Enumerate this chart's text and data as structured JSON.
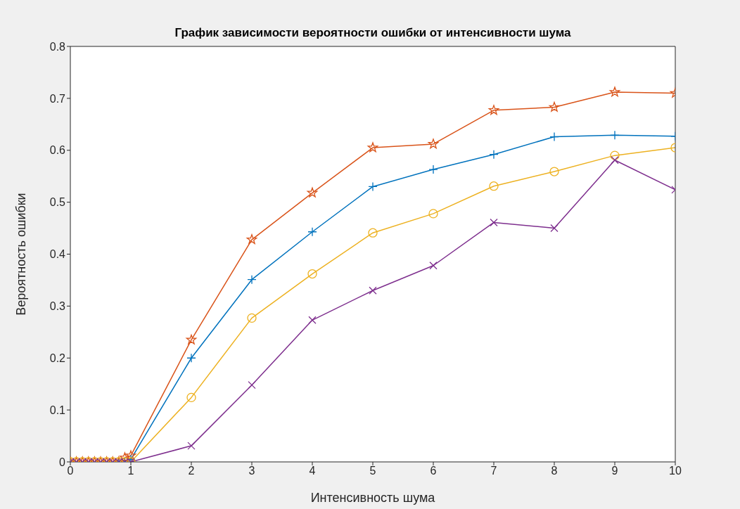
{
  "chart_data": {
    "type": "line",
    "title": "График зависимости вероятности ошибки от интенсивности шума",
    "xlabel": "Интенсивность шума",
    "ylabel": "Вероятность ошибки",
    "x": [
      0,
      0.1,
      0.2,
      0.3,
      0.4,
      0.5,
      0.6,
      0.7,
      0.8,
      0.9,
      1,
      2,
      3,
      4,
      5,
      6,
      7,
      8,
      9,
      10
    ],
    "series": [
      {
        "color": "#0072bd",
        "marker": "cross",
        "values": [
          null,
          null,
          null,
          null,
          null,
          null,
          null,
          null,
          0,
          0,
          0.005,
          0.2,
          0.351,
          0.443,
          0.53,
          0.563,
          0.592,
          0.626,
          0.629,
          0.627
        ]
      },
      {
        "color": "#d95319",
        "marker": "star",
        "values": [
          0,
          0,
          0,
          0,
          0,
          0,
          0,
          0,
          0,
          0.008,
          0.012,
          0.235,
          0.428,
          0.518,
          0.605,
          0.612,
          0.677,
          0.683,
          0.712,
          0.71
        ]
      },
      {
        "color": "#edb120",
        "marker": "circle",
        "values": [
          0,
          0,
          0,
          0,
          0,
          0,
          0,
          0,
          0,
          0,
          0,
          0.124,
          0.277,
          0.362,
          0.441,
          0.478,
          0.531,
          0.559,
          0.59,
          0.605
        ]
      },
      {
        "color": "#7e2f8e",
        "marker": "x",
        "values": [
          0,
          0,
          0,
          0,
          0,
          0,
          0,
          0,
          0,
          0,
          0,
          0.031,
          0.148,
          0.273,
          0.33,
          0.378,
          0.461,
          0.45,
          0.581,
          0.524
        ]
      }
    ],
    "xlim": [
      0,
      10
    ],
    "xticks": [
      0,
      1,
      2,
      3,
      4,
      5,
      6,
      7,
      8,
      9,
      10
    ],
    "ylim": [
      0,
      0.8
    ],
    "yticks": [
      0,
      0.1,
      0.2,
      0.3,
      0.4,
      0.5,
      0.6,
      0.7,
      0.8
    ],
    "grid": false,
    "legend": false
  }
}
